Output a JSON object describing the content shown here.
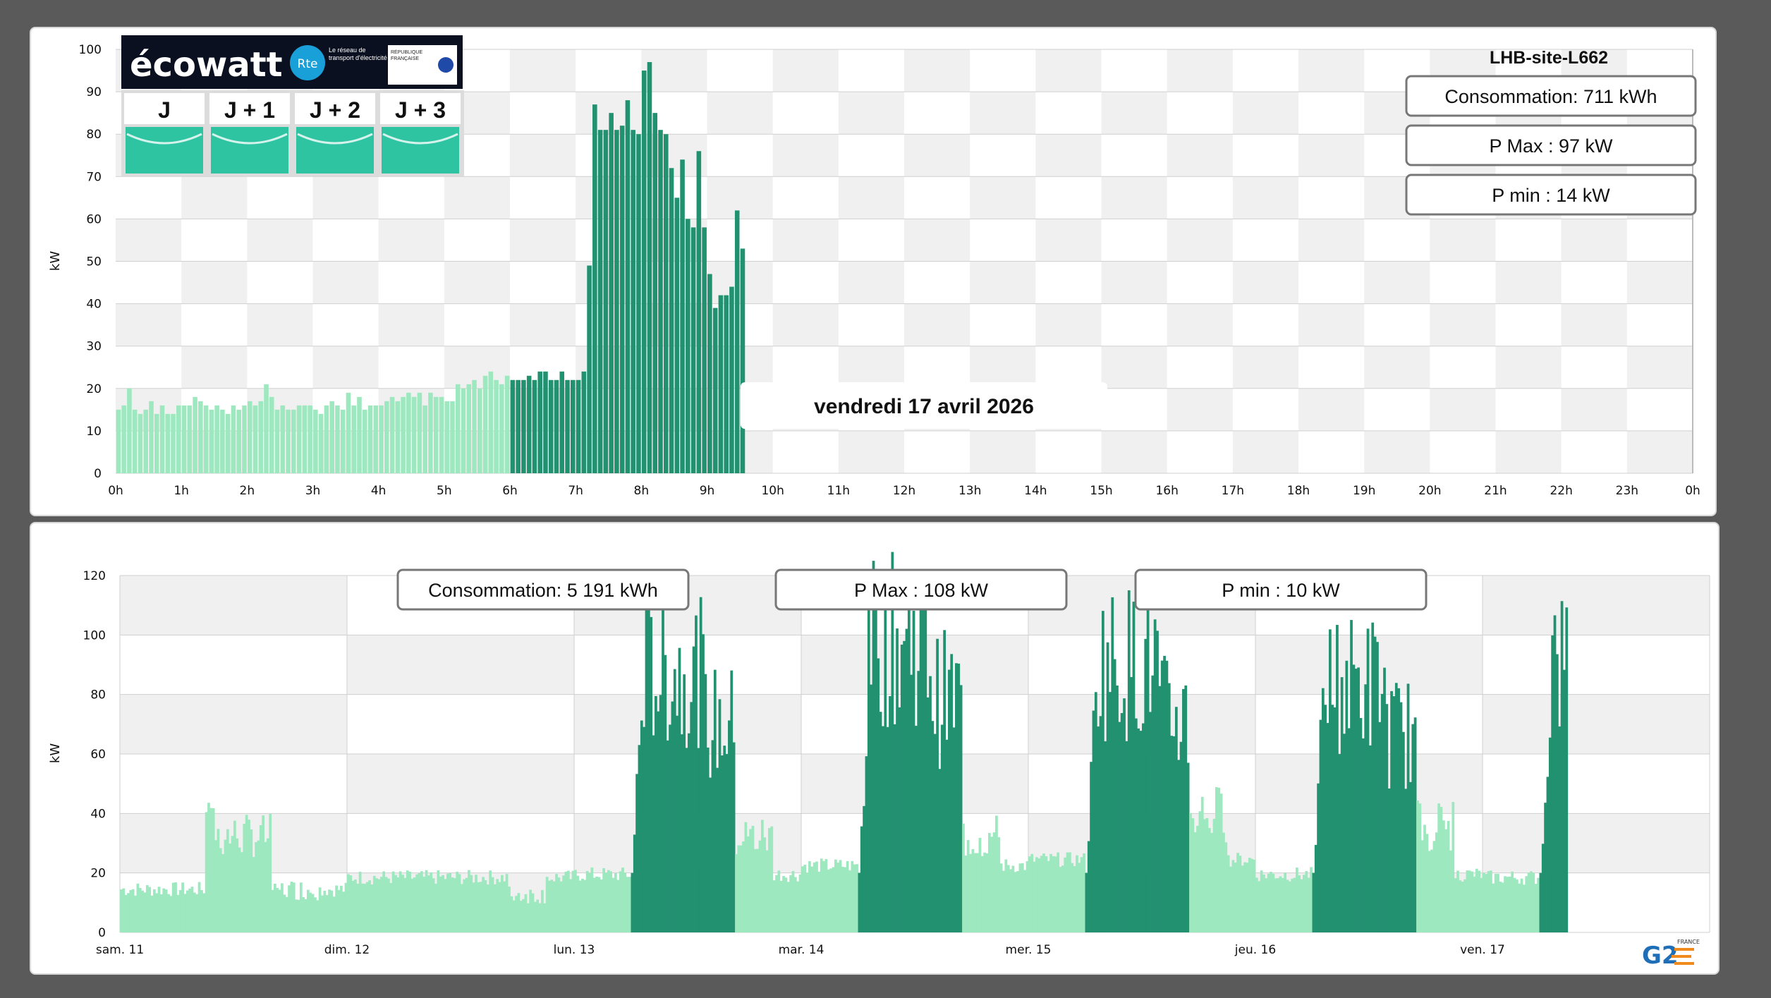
{
  "daily": {
    "site_name": "LHB-site-L662",
    "date": "vendredi 17 avril 2026",
    "consumption": "Consommation: 711 kWh",
    "pmax": "P Max :  97 kW",
    "pmin": "P min : 14 kW"
  },
  "weekly": {
    "consumption": "Consommation: 5 191 kWh",
    "pmax": "P Max :  108 kW",
    "pmin": "P min : 10 kW"
  },
  "ecowatt": {
    "logo": "écowatt",
    "partner": "Rte",
    "partner_text": "Le réseau de transport d'électricité",
    "gov_text": "RÉPUBLIQUE FRANÇAISE",
    "days": [
      "J",
      "J + 1",
      "J + 2",
      "J + 3"
    ],
    "signal_color": "#2ec4a2"
  },
  "brand": {
    "logo": "G2",
    "badge": "FRANCE"
  },
  "colors": {
    "light": "#9de8bf",
    "dark": "#229170",
    "grid": "#cfcfcf",
    "band": "#f0f0f0"
  },
  "chart_data": [
    {
      "type": "bar",
      "title": "vendredi 17 avril 2026",
      "ylabel": "kW",
      "ylim": [
        0,
        100
      ],
      "yticks": [
        0,
        10,
        20,
        30,
        40,
        50,
        60,
        70,
        80,
        90,
        100
      ],
      "xlim": [
        0,
        24
      ],
      "xticks": [
        "0h",
        "1h",
        "2h",
        "3h",
        "4h",
        "5h",
        "6h",
        "7h",
        "8h",
        "9h",
        "10h",
        "11h",
        "12h",
        "13h",
        "14h",
        "15h",
        "16h",
        "17h",
        "18h",
        "19h",
        "20h",
        "21h",
        "22h",
        "23h",
        "0h"
      ],
      "interval_minutes": 5,
      "off_peak_until_hour": 6,
      "values": [
        15,
        16,
        20,
        15,
        14,
        15,
        17,
        14,
        16,
        14,
        14,
        16,
        16,
        16,
        18,
        17,
        16,
        15,
        16,
        15,
        14,
        16,
        15,
        16,
        17,
        16,
        17,
        21,
        18,
        15,
        16,
        15,
        15,
        16,
        16,
        16,
        15,
        14,
        16,
        17,
        16,
        15,
        19,
        16,
        18,
        15,
        16,
        16,
        16,
        17,
        18,
        17,
        18,
        19,
        18,
        19,
        16,
        19,
        18,
        18,
        17,
        17,
        21,
        20,
        21,
        22,
        20,
        23,
        24,
        22,
        21,
        23,
        22,
        22,
        22,
        23,
        22,
        24,
        24,
        22,
        22,
        24,
        22,
        22,
        22,
        24,
        49,
        87,
        81,
        81,
        85,
        81,
        82,
        88,
        81,
        80,
        95,
        97,
        85,
        81,
        80,
        72,
        65,
        74,
        60,
        58,
        76,
        58,
        47,
        39,
        42,
        42,
        44,
        62,
        53
      ]
    },
    {
      "type": "bar",
      "ylabel": "kW",
      "ylim": [
        0,
        120
      ],
      "yticks": [
        0,
        20,
        40,
        60,
        80,
        100,
        120
      ],
      "xticks": [
        "sam. 11",
        "dim. 12",
        "lun. 13",
        "mar. 14",
        "mer. 15",
        "jeu. 16",
        "ven. 17"
      ],
      "day_segments": [
        {
          "day": "sam. 11",
          "base": 12,
          "business_peak": 0,
          "evening": 18
        },
        {
          "day": "dim. 12",
          "base": 16,
          "business_peak": 0,
          "evening": 16
        },
        {
          "day": "lun. 13",
          "base": 17,
          "business_peak": 93,
          "evening": 40
        },
        {
          "day": "mar. 14",
          "base": 20,
          "business_peak": 108,
          "evening": 40
        },
        {
          "day": "mer. 15",
          "base": 22,
          "business_peak": 98,
          "evening": 50
        },
        {
          "day": "jeu. 16",
          "base": 17,
          "business_peak": 88,
          "evening": 45
        },
        {
          "day": "ven. 17",
          "base": 16,
          "business_peak": 97,
          "evening": 0
        }
      ]
    }
  ]
}
